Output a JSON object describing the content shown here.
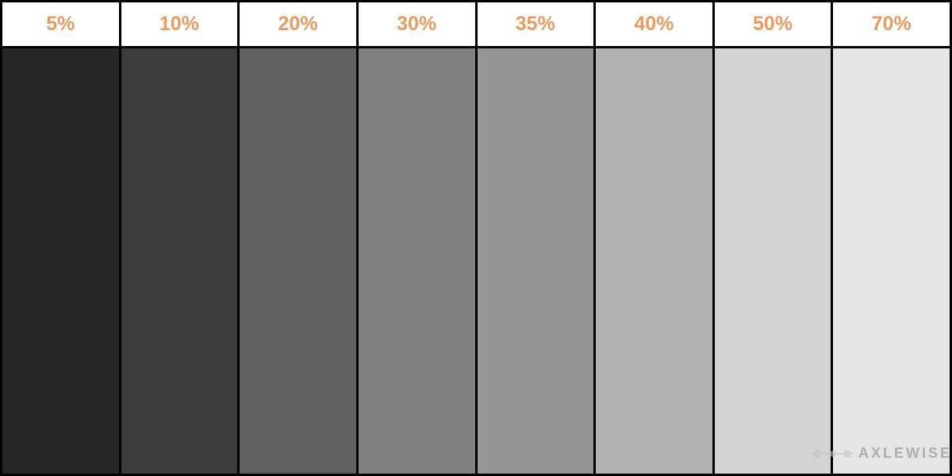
{
  "chart": {
    "type": "swatch-comparison",
    "border_color": "#000000",
    "border_width": 3,
    "header_background": "#ffffff",
    "label_color": "#ed9a5e",
    "label_fontsize": 25,
    "label_fontweight": 700,
    "columns": [
      {
        "label": "5%",
        "color": "#262626"
      },
      {
        "label": "10%",
        "color": "#3c3c3c"
      },
      {
        "label": "20%",
        "color": "#616161"
      },
      {
        "label": "30%",
        "color": "#808080"
      },
      {
        "label": "35%",
        "color": "#959595"
      },
      {
        "label": "40%",
        "color": "#b2b2b2"
      },
      {
        "label": "50%",
        "color": "#d4d4d4"
      },
      {
        "label": "70%",
        "color": "#e6e6e6"
      }
    ]
  },
  "watermark": {
    "text": "AXLEWISE",
    "text_color": "#8a8a8a",
    "icon_color": "#c4c4c4"
  }
}
